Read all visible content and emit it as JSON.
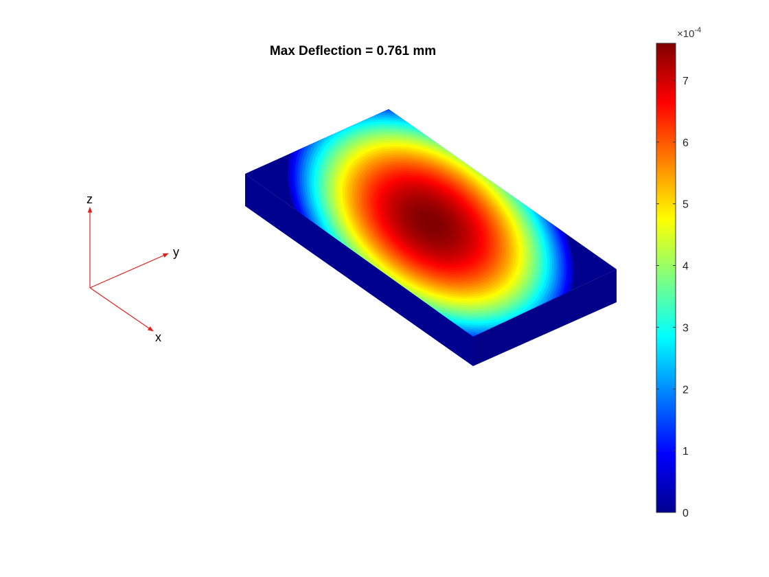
{
  "chart_data": {
    "type": "heatmap",
    "title": "Max Deflection = 0.761 mm",
    "colormap": "jet",
    "axes_visible": false,
    "view": "3-D isometric surface of a rectangular plate",
    "field": {
      "quantity": "deflection",
      "max": 0.000761,
      "min": 0,
      "shape": "sin(pi*x/a)*sin(pi*y/b) over plate, maximum at centre, zero on edges"
    },
    "triad": {
      "labels": [
        "z",
        "y",
        "x"
      ],
      "color": "#e0201b"
    },
    "colorbar": {
      "limits": [
        0,
        0.00076
      ],
      "ticks": [
        0,
        1,
        2,
        3,
        4,
        5,
        6,
        7
      ],
      "tick_labels": [
        "0",
        "1",
        "2",
        "3",
        "4",
        "5",
        "6",
        "7"
      ],
      "exponent_label": "×10",
      "exponent_value": "-4",
      "location": "right"
    },
    "colors": {
      "edge_dark": "#00008f",
      "side_face": "#00008f",
      "background": "#ffffff"
    }
  }
}
